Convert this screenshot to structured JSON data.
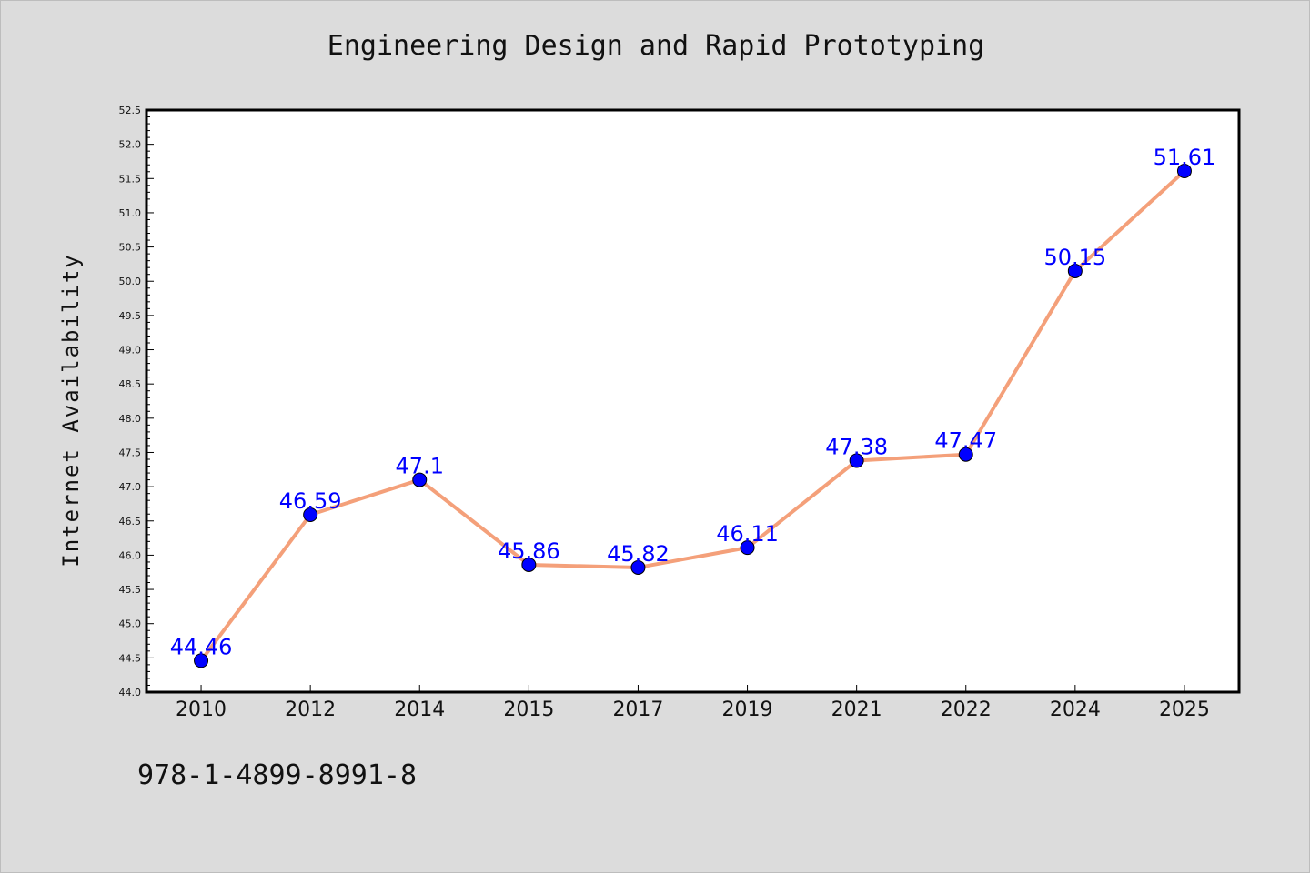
{
  "header": {
    "title": "Engineering Design and Rapid Prototyping"
  },
  "footer": {
    "code": "978-1-4899-8991-8"
  },
  "chart_data": {
    "type": "line",
    "title": "Engineering Design and Rapid Prototyping",
    "xlabel": "",
    "ylabel": "Internet Availability",
    "categories": [
      "2010",
      "2012",
      "2014",
      "2015",
      "2017",
      "2019",
      "2021",
      "2022",
      "2024",
      "2025"
    ],
    "series": [
      {
        "values": [
          44.46,
          46.59,
          47.1,
          45.86,
          45.82,
          46.11,
          47.38,
          47.47,
          50.15,
          51.61
        ]
      }
    ],
    "data_labels": [
      "44.46",
      "46.59",
      "47.1",
      "45.86",
      "45.82",
      "46.11",
      "47.38",
      "47.47",
      "50.15",
      "51.61"
    ],
    "ylim": [
      44.0,
      52.5
    ],
    "yticks": [
      "44.0",
      "44.5",
      "45.0",
      "45.5",
      "46.0",
      "46.5",
      "47.0",
      "47.5",
      "48.0",
      "48.5",
      "49.0",
      "49.5",
      "50.0",
      "50.5",
      "51.0",
      "51.5",
      "52.0",
      "52.5"
    ],
    "grid": false,
    "legend": "none",
    "colors": {
      "line": "#f4a07a",
      "marker": "#0000ff",
      "label": "#0000ff",
      "background": "#dcdcdc",
      "plot_background": "#ffffff"
    }
  }
}
